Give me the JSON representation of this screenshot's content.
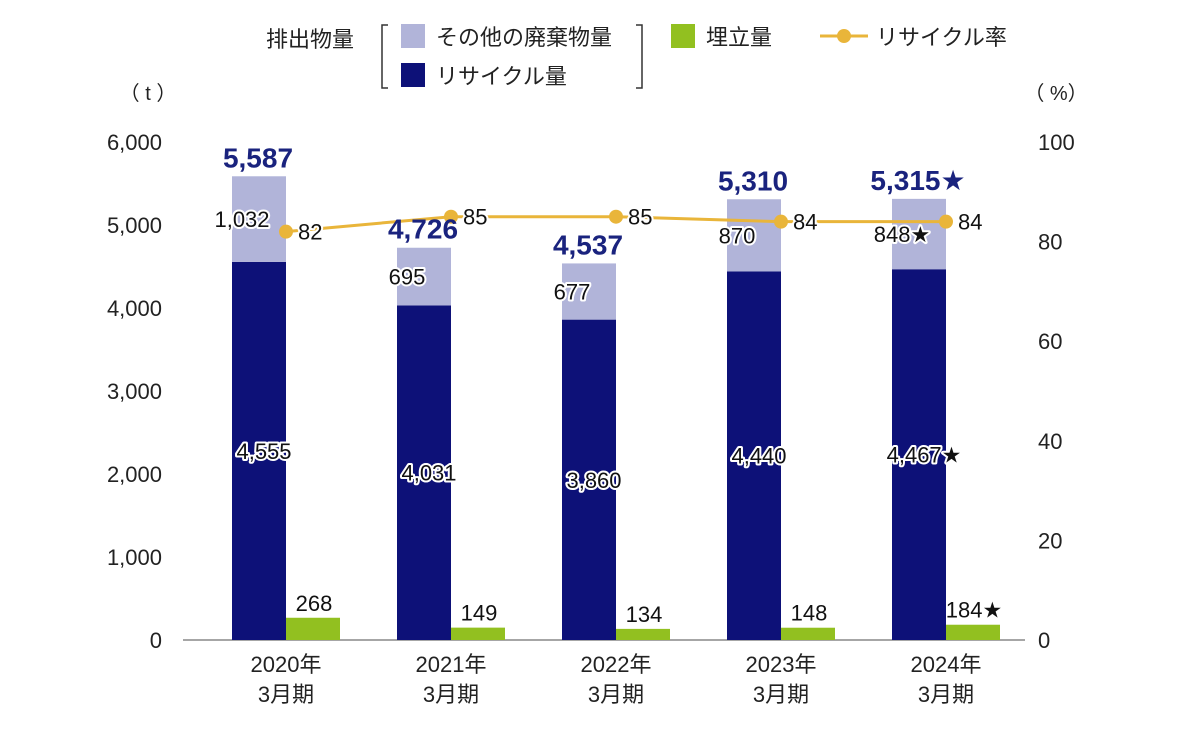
{
  "chart_data": {
    "type": "bar",
    "categories": [
      [
        "2020年",
        "3月期"
      ],
      [
        "2021年",
        "3月期"
      ],
      [
        "2022年",
        "3月期"
      ],
      [
        "2023年",
        "3月期"
      ],
      [
        "2024年",
        "3月期"
      ]
    ],
    "left_unit": "（ t ）",
    "right_unit": "（ %）",
    "left_axis": {
      "min": 0,
      "max": 6000,
      "ticks": [
        "0",
        "1,000",
        "2,000",
        "3,000",
        "4,000",
        "5,000",
        "6,000"
      ]
    },
    "right_axis": {
      "min": 0,
      "max": 100,
      "ticks": [
        "0",
        "20",
        "40",
        "60",
        "80",
        "100"
      ]
    },
    "legend": {
      "group_label": "排出物量",
      "other": "その他の廃棄物量",
      "recycle": "リサイクル量",
      "landfill": "埋立量",
      "rate": "リサイクル率"
    },
    "series": [
      {
        "name": "リサイクル量",
        "values": [
          4555,
          4031,
          3860,
          4440,
          4467
        ],
        "labels": [
          "4,555",
          "4,031",
          "3,860",
          "4,440",
          "4,467★"
        ]
      },
      {
        "name": "その他の廃棄物量",
        "values": [
          1032,
          695,
          677,
          870,
          848
        ],
        "labels": [
          "1,032",
          "695",
          "677",
          "870",
          "848★"
        ]
      },
      {
        "name": "埋立量",
        "values": [
          268,
          149,
          134,
          148,
          184
        ],
        "labels": [
          "268",
          "149",
          "134",
          "148",
          "184★"
        ]
      },
      {
        "name": "リサイクル率",
        "values": [
          82,
          85,
          85,
          84,
          84
        ],
        "labels": [
          "82",
          "85",
          "85",
          "84",
          "84"
        ]
      }
    ],
    "totals": {
      "values": [
        5587,
        4726,
        4537,
        5310,
        5315
      ],
      "labels": [
        "5,587",
        "4,726",
        "4,537",
        "5,310",
        "5,315★"
      ]
    },
    "colors": {
      "recycle": "#0d1178",
      "other": "#b1b4d9",
      "landfill": "#92c020",
      "rate": "#e9b53a",
      "total_text": "#1a237e"
    },
    "grid": false
  }
}
